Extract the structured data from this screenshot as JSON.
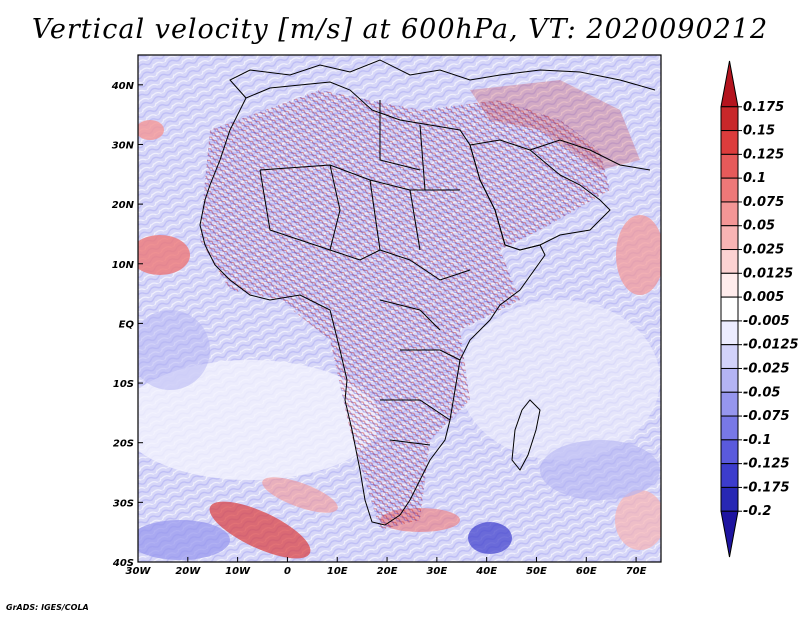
{
  "title": "Vertical velocity [m/s] at 600hPa, VT: 2020090212",
  "footer": "GrADS: IGES/COLA",
  "map": {
    "lon_range": [
      -30,
      75
    ],
    "lat_range": [
      -40,
      45
    ],
    "lon_ticks": [
      {
        "value": -30,
        "label": "30W"
      },
      {
        "value": -20,
        "label": "20W"
      },
      {
        "value": -10,
        "label": "10W"
      },
      {
        "value": 0,
        "label": "0"
      },
      {
        "value": 10,
        "label": "10E"
      },
      {
        "value": 20,
        "label": "20E"
      },
      {
        "value": 30,
        "label": "30E"
      },
      {
        "value": 40,
        "label": "40E"
      },
      {
        "value": 50,
        "label": "50E"
      },
      {
        "value": 60,
        "label": "60E"
      },
      {
        "value": 70,
        "label": "70E"
      }
    ],
    "lat_ticks": [
      {
        "value": 40,
        "label": "40N"
      },
      {
        "value": 30,
        "label": "30N"
      },
      {
        "value": 20,
        "label": "20N"
      },
      {
        "value": 10,
        "label": "10N"
      },
      {
        "value": 0,
        "label": "EQ"
      },
      {
        "value": -10,
        "label": "10S"
      },
      {
        "value": -20,
        "label": "20S"
      },
      {
        "value": -30,
        "label": "30S"
      },
      {
        "value": -40,
        "label": "40S"
      }
    ]
  },
  "colorbar": {
    "labels": [
      "0.175",
      "0.15",
      "0.125",
      "0.1",
      "0.075",
      "0.05",
      "0.025",
      "0.0125",
      "0.005",
      "-0.005",
      "-0.0125",
      "-0.025",
      "-0.05",
      "-0.075",
      "-0.1",
      "-0.125",
      "-0.175",
      "-0.2"
    ],
    "colors": [
      "#b4141e",
      "#c8282a",
      "#dc3c3c",
      "#e65a5a",
      "#ee7878",
      "#f49696",
      "#f8b4b4",
      "#fcd2d2",
      "#ffecec",
      "#ffffff",
      "#ececff",
      "#d2d2fa",
      "#b4b4f4",
      "#9696ee",
      "#7878e6",
      "#5a5adc",
      "#3c3ccc",
      "#2828b4",
      "#1e14a0"
    ]
  },
  "colors": {
    "frame": "#000000",
    "coastline": "#000000"
  }
}
